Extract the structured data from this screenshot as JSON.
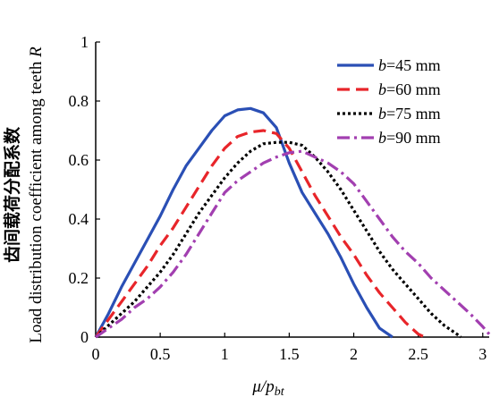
{
  "chart_data": {
    "type": "line",
    "xlabel": {
      "main": "μ/p",
      "sub": "bt"
    },
    "ylabel": {
      "cn": "齿间载荷分配系数",
      "en": "Load distribution coefficient among teeth ",
      "var": "R"
    },
    "xlim": [
      0,
      3.05
    ],
    "ylim": [
      0,
      1
    ],
    "xticks": [
      "0",
      "0.5",
      "1",
      "1.5",
      "2",
      "2.5",
      "3"
    ],
    "yticks": [
      "0",
      "0.2",
      "0.4",
      "0.6",
      "0.8",
      "1"
    ],
    "grid": false,
    "legend_position": "top-right",
    "series": [
      {
        "name": "b=45 mm",
        "label_var": "b",
        "label_rest": "=45 mm",
        "color": "#2a4fb5",
        "dash": "solid",
        "points": [
          [
            0,
            0
          ],
          [
            0.1,
            0.08
          ],
          [
            0.2,
            0.17
          ],
          [
            0.3,
            0.25
          ],
          [
            0.4,
            0.33
          ],
          [
            0.5,
            0.41
          ],
          [
            0.6,
            0.5
          ],
          [
            0.7,
            0.58
          ],
          [
            0.8,
            0.64
          ],
          [
            0.9,
            0.7
          ],
          [
            1.0,
            0.75
          ],
          [
            1.1,
            0.77
          ],
          [
            1.2,
            0.775
          ],
          [
            1.3,
            0.76
          ],
          [
            1.4,
            0.71
          ],
          [
            1.5,
            0.59
          ],
          [
            1.6,
            0.49
          ],
          [
            1.7,
            0.42
          ],
          [
            1.8,
            0.35
          ],
          [
            1.9,
            0.27
          ],
          [
            2.0,
            0.18
          ],
          [
            2.1,
            0.1
          ],
          [
            2.2,
            0.03
          ],
          [
            2.3,
            0
          ]
        ]
      },
      {
        "name": "b=60 mm",
        "label_var": "b",
        "label_rest": "=60 mm",
        "color": "#e8252a",
        "dash": "dashed",
        "points": [
          [
            0,
            0
          ],
          [
            0.1,
            0.06
          ],
          [
            0.2,
            0.12
          ],
          [
            0.3,
            0.18
          ],
          [
            0.4,
            0.24
          ],
          [
            0.5,
            0.31
          ],
          [
            0.6,
            0.37
          ],
          [
            0.7,
            0.44
          ],
          [
            0.8,
            0.51
          ],
          [
            0.9,
            0.58
          ],
          [
            1.0,
            0.64
          ],
          [
            1.1,
            0.68
          ],
          [
            1.2,
            0.695
          ],
          [
            1.3,
            0.7
          ],
          [
            1.4,
            0.69
          ],
          [
            1.5,
            0.64
          ],
          [
            1.6,
            0.56
          ],
          [
            1.7,
            0.48
          ],
          [
            1.8,
            0.41
          ],
          [
            1.9,
            0.34
          ],
          [
            2.0,
            0.28
          ],
          [
            2.1,
            0.21
          ],
          [
            2.2,
            0.15
          ],
          [
            2.3,
            0.1
          ],
          [
            2.4,
            0.05
          ],
          [
            2.5,
            0.01
          ],
          [
            2.55,
            0
          ]
        ]
      },
      {
        "name": "b=75 mm",
        "label_var": "b",
        "label_rest": "=75 mm",
        "color": "#000000",
        "dash": "dotted",
        "points": [
          [
            0,
            0
          ],
          [
            0.1,
            0.04
          ],
          [
            0.2,
            0.08
          ],
          [
            0.3,
            0.12
          ],
          [
            0.4,
            0.17
          ],
          [
            0.5,
            0.22
          ],
          [
            0.6,
            0.28
          ],
          [
            0.7,
            0.35
          ],
          [
            0.8,
            0.42
          ],
          [
            0.9,
            0.48
          ],
          [
            1.0,
            0.54
          ],
          [
            1.1,
            0.59
          ],
          [
            1.2,
            0.63
          ],
          [
            1.3,
            0.655
          ],
          [
            1.4,
            0.66
          ],
          [
            1.5,
            0.66
          ],
          [
            1.6,
            0.65
          ],
          [
            1.7,
            0.61
          ],
          [
            1.8,
            0.56
          ],
          [
            1.9,
            0.5
          ],
          [
            2.0,
            0.43
          ],
          [
            2.1,
            0.36
          ],
          [
            2.2,
            0.29
          ],
          [
            2.3,
            0.23
          ],
          [
            2.4,
            0.18
          ],
          [
            2.5,
            0.13
          ],
          [
            2.6,
            0.08
          ],
          [
            2.7,
            0.04
          ],
          [
            2.8,
            0.01
          ],
          [
            2.83,
            0
          ]
        ]
      },
      {
        "name": "b=90 mm",
        "label_var": "b",
        "label_rest": "=90 mm",
        "color": "#a23fb0",
        "dash": "dashdot",
        "points": [
          [
            0,
            0
          ],
          [
            0.1,
            0.03
          ],
          [
            0.2,
            0.06
          ],
          [
            0.3,
            0.1
          ],
          [
            0.4,
            0.13
          ],
          [
            0.5,
            0.17
          ],
          [
            0.6,
            0.22
          ],
          [
            0.7,
            0.28
          ],
          [
            0.8,
            0.35
          ],
          [
            0.9,
            0.42
          ],
          [
            1.0,
            0.49
          ],
          [
            1.1,
            0.53
          ],
          [
            1.2,
            0.56
          ],
          [
            1.3,
            0.59
          ],
          [
            1.4,
            0.61
          ],
          [
            1.5,
            0.625
          ],
          [
            1.6,
            0.63
          ],
          [
            1.7,
            0.61
          ],
          [
            1.8,
            0.59
          ],
          [
            1.9,
            0.56
          ],
          [
            2.0,
            0.52
          ],
          [
            2.1,
            0.46
          ],
          [
            2.2,
            0.4
          ],
          [
            2.3,
            0.34
          ],
          [
            2.4,
            0.29
          ],
          [
            2.5,
            0.25
          ],
          [
            2.6,
            0.2
          ],
          [
            2.7,
            0.16
          ],
          [
            2.8,
            0.12
          ],
          [
            2.9,
            0.08
          ],
          [
            3.0,
            0.035
          ],
          [
            3.05,
            0.01
          ]
        ]
      }
    ]
  }
}
